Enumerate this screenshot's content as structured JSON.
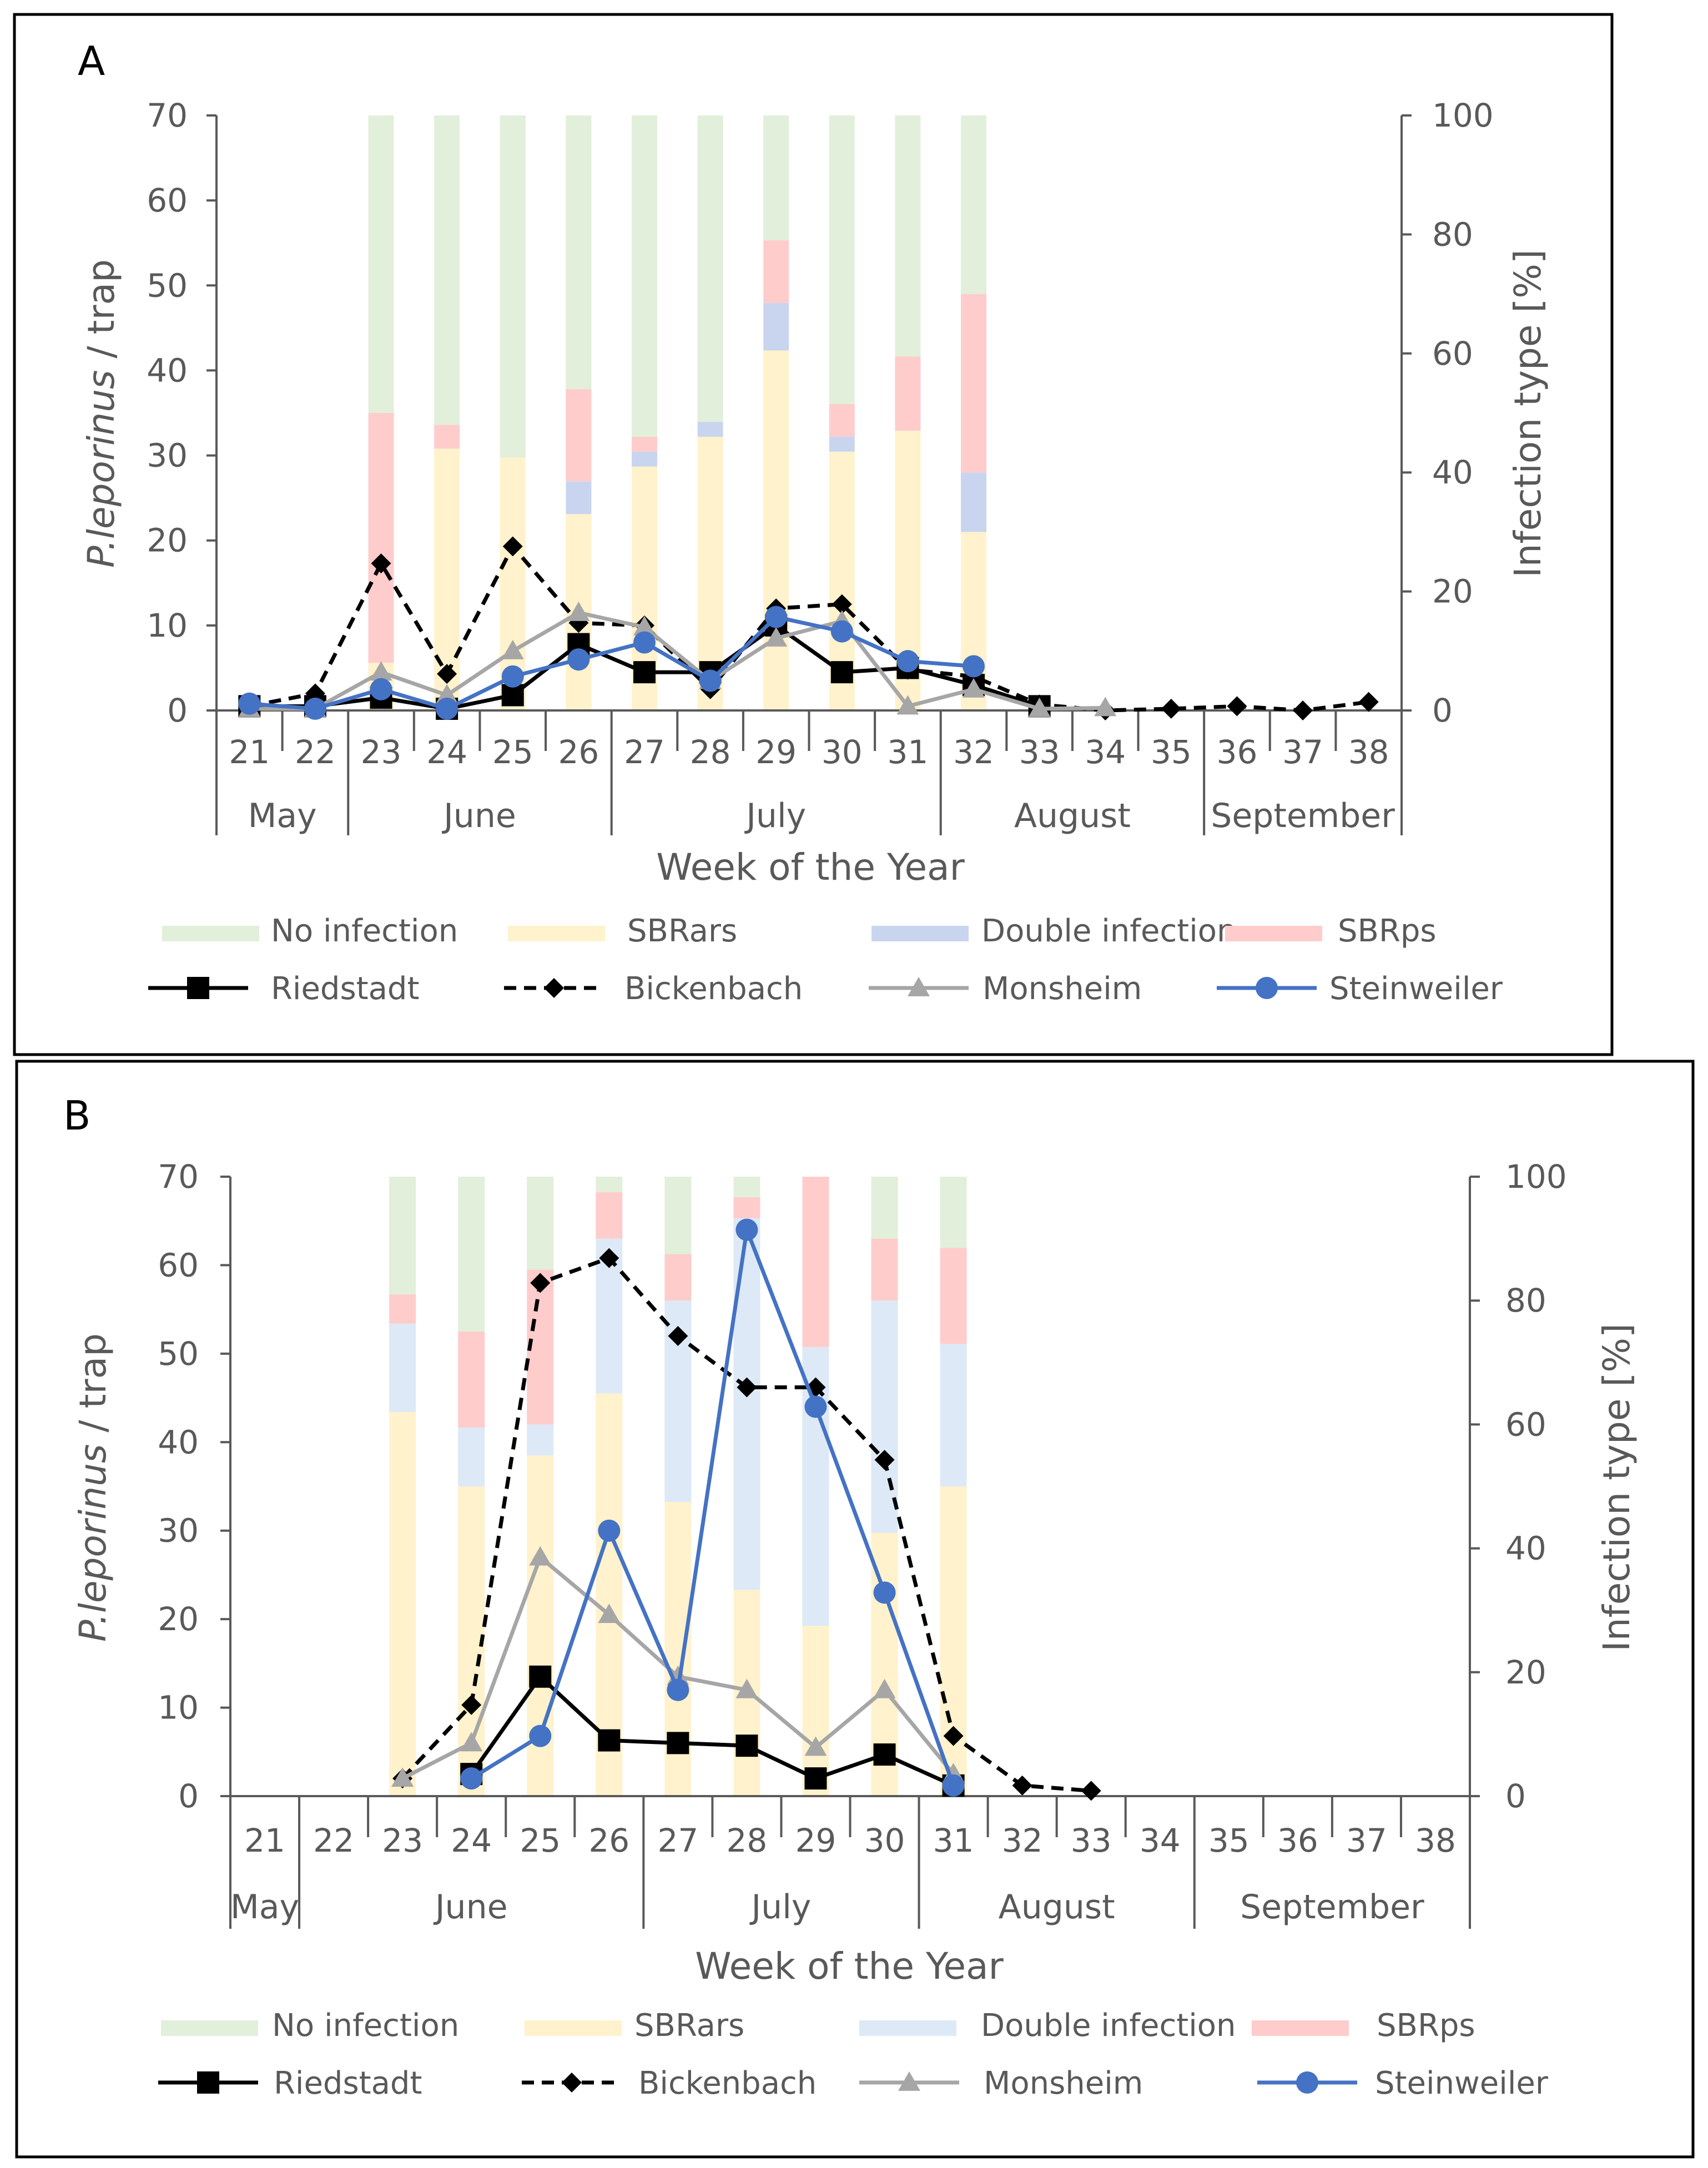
{
  "colors": {
    "no_infection": "#e2efda",
    "sbrars": "#fff2cc",
    "double_a": "#c9d5ef",
    "double_b": "#dde9f6",
    "sbrps": "#ffcccc",
    "riedstadt": "#000000",
    "bickenbach": "#000000",
    "monsheim": "#a6a6a6",
    "steinweiler": "#4472c4",
    "axis": "#595959",
    "frame": "#000000"
  },
  "chart_data": [
    {
      "panel": "A",
      "type": "bar",
      "xlabel": "Week of the Year",
      "ylabel_left_prefix": "P.leporinus",
      "ylabel_left_suffix": " / trap",
      "ylabel_right": "Infection type [%]",
      "ylim_left": [
        0,
        70
      ],
      "ylim_right": [
        0,
        100
      ],
      "left_ticks": [
        "0",
        "10",
        "20",
        "30",
        "40",
        "50",
        "60",
        "70"
      ],
      "right_ticks": [
        "0",
        "20",
        "40",
        "60",
        "80",
        "100"
      ],
      "weeks": [
        "21",
        "22",
        "23",
        "24",
        "25",
        "26",
        "27",
        "28",
        "29",
        "30",
        "31",
        "32",
        "33",
        "34",
        "35",
        "36",
        "37",
        "38"
      ],
      "months": [
        {
          "label": "May",
          "start": 0,
          "end": 2
        },
        {
          "label": "June",
          "start": 2,
          "end": 6
        },
        {
          "label": "July",
          "start": 6,
          "end": 11
        },
        {
          "label": "August",
          "start": 11,
          "end": 15
        },
        {
          "label": "September",
          "start": 15,
          "end": 18
        }
      ],
      "bars": [
        {
          "week": "23",
          "sbrars": 8,
          "double": 0,
          "sbrps": 42,
          "no_infection": 50
        },
        {
          "week": "24",
          "sbrars": 44,
          "double": 0,
          "sbrps": 4,
          "no_infection": 52
        },
        {
          "week": "25",
          "sbrars": 42.5,
          "double": 0,
          "sbrps": 0,
          "no_infection": 57.5
        },
        {
          "week": "26",
          "sbrars": 33,
          "double": 5.5,
          "sbrps": 15.5,
          "no_infection": 46
        },
        {
          "week": "27",
          "sbrars": 41,
          "double": 2.5,
          "sbrps": 2.5,
          "no_infection": 54
        },
        {
          "week": "28",
          "sbrars": 46,
          "double": 2.5,
          "sbrps": 0,
          "no_infection": 51.5
        },
        {
          "week": "29",
          "sbrars": 60.5,
          "double": 8,
          "sbrps": 10.5,
          "no_infection": 21
        },
        {
          "week": "30",
          "sbrars": 43.5,
          "double": 2.5,
          "sbrps": 5.5,
          "no_infection": 48.5
        },
        {
          "week": "31",
          "sbrars": 47,
          "double": 0,
          "sbrps": 12.5,
          "no_infection": 40.5
        },
        {
          "week": "32",
          "sbrars": 30,
          "double": 10,
          "sbrps": 30,
          "no_infection": 30
        }
      ],
      "series": [
        {
          "name": "Riedstadt",
          "key": "riedstadt",
          "marker": "square",
          "dash": false,
          "values": [
            0.5,
            0.5,
            1.5,
            0.2,
            1.8,
            7.8,
            4.5,
            4.5,
            10,
            4.5,
            5,
            3,
            0.5,
            null,
            null,
            null,
            null,
            null
          ]
        },
        {
          "name": "Bickenbach",
          "key": "bickenbach",
          "marker": "diamond",
          "dash": true,
          "values": [
            0.5,
            2,
            17.3,
            4.3,
            19.3,
            10.3,
            10,
            2.5,
            12,
            12.5,
            4.8,
            4,
            0.7,
            0,
            0.2,
            0.5,
            0,
            1
          ]
        },
        {
          "name": "Monsheim",
          "key": "monsheim",
          "marker": "triangle",
          "dash": false,
          "values": [
            0.2,
            0.2,
            4.5,
            1.8,
            7,
            11.5,
            9.8,
            3.5,
            8.5,
            10.5,
            0.5,
            2.5,
            0.2,
            0.3,
            null,
            null,
            null,
            null
          ]
        },
        {
          "name": "Steinweiler",
          "key": "steinweiler",
          "marker": "circle",
          "dash": false,
          "values": [
            0.8,
            0.2,
            2.5,
            0.2,
            4,
            6,
            8,
            3.5,
            11,
            9.3,
            5.8,
            5.2,
            null,
            null,
            null,
            null,
            null,
            null
          ]
        }
      ]
    },
    {
      "panel": "B",
      "type": "bar",
      "xlabel": "Week of the Year",
      "ylabel_left_prefix": "P.leporinus",
      "ylabel_left_suffix": " / trap",
      "ylabel_right": "Infection type [%]",
      "ylim_left": [
        0,
        70
      ],
      "ylim_right": [
        0,
        100
      ],
      "left_ticks": [
        "0",
        "10",
        "20",
        "30",
        "40",
        "50",
        "60",
        "70"
      ],
      "right_ticks": [
        "0",
        "20",
        "40",
        "60",
        "80",
        "100"
      ],
      "weeks": [
        "21",
        "22",
        "23",
        "24",
        "25",
        "26",
        "27",
        "28",
        "29",
        "30",
        "31",
        "32",
        "33",
        "34",
        "35",
        "36",
        "37",
        "38"
      ],
      "months": [
        {
          "label": "May",
          "start": 0,
          "end": 1
        },
        {
          "label": "June",
          "start": 1,
          "end": 6
        },
        {
          "label": "July",
          "start": 6,
          "end": 10
        },
        {
          "label": "August",
          "start": 10,
          "end": 14
        },
        {
          "label": "September",
          "start": 14,
          "end": 18
        }
      ],
      "bars": [
        {
          "week": "23",
          "sbrars": 62,
          "double": 14.3,
          "sbrps": 4.7,
          "no_infection": 19
        },
        {
          "week": "24",
          "sbrars": 50,
          "double": 9.5,
          "sbrps": 15.5,
          "no_infection": 25
        },
        {
          "week": "25",
          "sbrars": 55,
          "double": 5,
          "sbrps": 25,
          "no_infection": 15
        },
        {
          "week": "26",
          "sbrars": 65,
          "double": 25,
          "sbrps": 7.5,
          "no_infection": 2.5
        },
        {
          "week": "27",
          "sbrars": 47.5,
          "double": 32.5,
          "sbrps": 7.5,
          "no_infection": 12.5
        },
        {
          "week": "28",
          "sbrars": 33.3,
          "double": 60,
          "sbrps": 3.4,
          "no_infection": 3.3
        },
        {
          "week": "29",
          "sbrars": 27.5,
          "double": 45,
          "sbrps": 27.5,
          "no_infection": 0
        },
        {
          "week": "30",
          "sbrars": 42.5,
          "double": 37.5,
          "sbrps": 10,
          "no_infection": 10
        },
        {
          "week": "31",
          "sbrars": 50,
          "double": 23,
          "sbrps": 15.5,
          "no_infection": 11.5
        }
      ],
      "series": [
        {
          "name": "Riedstadt",
          "key": "riedstadt",
          "marker": "square",
          "dash": false,
          "values": [
            null,
            null,
            null,
            2.5,
            13.5,
            6.3,
            6,
            5.7,
            2,
            4.7,
            1.2,
            null,
            null,
            null,
            null,
            null,
            null,
            null
          ]
        },
        {
          "name": "Bickenbach",
          "key": "bickenbach",
          "marker": "diamond",
          "dash": true,
          "values": [
            null,
            null,
            2,
            10.3,
            58,
            60.8,
            52,
            46.2,
            46.2,
            38,
            6.8,
            1.2,
            0.6,
            null,
            null,
            null,
            null,
            null
          ]
        },
        {
          "name": "Monsheim",
          "key": "monsheim",
          "marker": "triangle",
          "dash": false,
          "values": [
            null,
            null,
            2,
            6,
            27,
            20.5,
            13.5,
            12,
            5.5,
            12,
            2.5,
            null,
            null,
            null,
            null,
            null,
            null,
            null
          ]
        },
        {
          "name": "Steinweiler",
          "key": "steinweiler",
          "marker": "circle",
          "dash": false,
          "values": [
            null,
            null,
            null,
            2,
            6.8,
            30,
            12,
            64,
            44,
            23,
            1.2,
            null,
            null,
            null,
            null,
            null,
            null,
            null
          ]
        }
      ]
    }
  ],
  "legend": {
    "A": {
      "bars": [
        {
          "label": "No   infection",
          "key": "no_infection"
        },
        {
          "label": "SBRars",
          "key": "sbrars"
        },
        {
          "label": "Double infection",
          "key": "double_a"
        },
        {
          "label": "SBRps",
          "key": "sbrps"
        }
      ],
      "lines": [
        {
          "label": "Riedstadt",
          "key": "riedstadt"
        },
        {
          "label": "Bickenbach",
          "key": "bickenbach"
        },
        {
          "label": "Monsheim",
          "key": "monsheim"
        },
        {
          "label": "Steinweiler",
          "key": "steinweiler"
        }
      ]
    },
    "B": {
      "bars": [
        {
          "label": "No infection",
          "key": "no_infection"
        },
        {
          "label": "SBRars",
          "key": "sbrars"
        },
        {
          "label": "Double infection",
          "key": "double_b"
        },
        {
          "label": "SBRps",
          "key": "sbrps"
        }
      ],
      "lines": [
        {
          "label": "Riedstadt",
          "key": "riedstadt"
        },
        {
          "label": "Bickenbach",
          "key": "bickenbach"
        },
        {
          "label": "Monsheim",
          "key": "monsheim"
        },
        {
          "label": "Steinweiler",
          "key": "steinweiler"
        }
      ]
    }
  }
}
